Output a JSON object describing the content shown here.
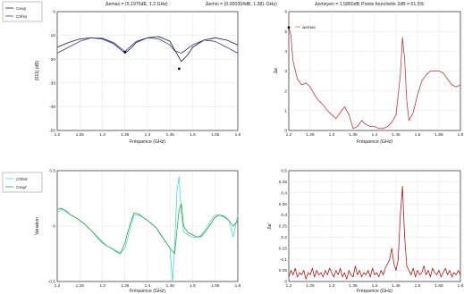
{
  "header": {
    "dmax": "Δemax = (5.1975dE, 1.2 GHz)",
    "dmin": "Δemin = (0.000304dB, 1.381 GHz)",
    "dmoyen": "Δemoyen = 1.5865dB",
    "fourchette": "Points fourchette 2dB = 61.5%"
  },
  "chart_data": [
    {
      "type": "line",
      "xlabel": "Fréquence (GHz)",
      "ylabel": "|S11| (dB)",
      "xlim": [
        1.2,
        1.6
      ],
      "ylim": [
        -50,
        0
      ],
      "xticks": [
        "1.2",
        "1.25",
        "1.3",
        "1.35",
        "1.4",
        "1.45",
        "1.5",
        "1.55",
        "1.6"
      ],
      "yticks": [
        "0",
        "-10",
        "-20",
        "-30",
        "-40",
        "-50"
      ],
      "grid": true,
      "legend": "top-left",
      "legend_entries": [
        "Cexp",
        "Chfss"
      ],
      "series": [
        {
          "name": "Cexp",
          "color": "#1a1a3a",
          "x": [
            1.2,
            1.225,
            1.25,
            1.275,
            1.3,
            1.325,
            1.35,
            1.36,
            1.375,
            1.4,
            1.425,
            1.45,
            1.46,
            1.475,
            1.49,
            1.5,
            1.525,
            1.55,
            1.575,
            1.6
          ],
          "y": [
            -15,
            -13,
            -11.5,
            -11,
            -11.5,
            -13.5,
            -17.5,
            -16,
            -13,
            -11,
            -10.5,
            -12.5,
            -16,
            -21,
            -18,
            -15,
            -12,
            -11,
            -12,
            -14
          ]
        },
        {
          "name": "Chfss",
          "color": "#3a3a8a",
          "x": [
            1.2,
            1.225,
            1.25,
            1.275,
            1.3,
            1.325,
            1.35,
            1.36,
            1.375,
            1.4,
            1.425,
            1.45,
            1.46,
            1.475,
            1.5,
            1.525,
            1.55,
            1.575,
            1.6
          ],
          "y": [
            -17.5,
            -15,
            -12.5,
            -11,
            -11.2,
            -13,
            -16.8,
            -15,
            -12.5,
            -11,
            -11.5,
            -14,
            -16.5,
            -17.5,
            -14,
            -12,
            -12.5,
            -15,
            -17.5
          ]
        }
      ],
      "markers": [
        {
          "x": 1.35,
          "y": -17
        },
        {
          "x": 1.47,
          "y": -24
        }
      ]
    },
    {
      "type": "line",
      "xlabel": "Fréquence (GHz)",
      "ylabel": "Δe",
      "xlim": [
        1.2,
        1.6
      ],
      "ylim": [
        0,
        6
      ],
      "xticks": [
        "1.2",
        "1.25",
        "1.3",
        "1.35",
        "1.4",
        "1.45",
        "1.5",
        "1.55",
        "1.6"
      ],
      "yticks": [
        "6",
        "5",
        "4",
        "3",
        "2",
        "1",
        "0"
      ],
      "grid": true,
      "legend": "top-left",
      "legend_entries": [
        "Δemax"
      ],
      "series": [
        {
          "name": "Δemax",
          "color": "#b04040",
          "x": [
            1.2,
            1.205,
            1.21,
            1.22,
            1.23,
            1.24,
            1.25,
            1.26,
            1.27,
            1.28,
            1.29,
            1.3,
            1.31,
            1.32,
            1.33,
            1.34,
            1.35,
            1.36,
            1.37,
            1.38,
            1.39,
            1.4,
            1.41,
            1.42,
            1.43,
            1.44,
            1.45,
            1.46,
            1.465,
            1.47,
            1.475,
            1.48,
            1.49,
            1.5,
            1.51,
            1.52,
            1.53,
            1.54,
            1.55,
            1.56,
            1.57,
            1.58,
            1.59,
            1.6
          ],
          "y": [
            5.2,
            4.8,
            3.5,
            2.6,
            2.3,
            2.4,
            2.2,
            1.8,
            1.5,
            1.3,
            1.0,
            0.8,
            0.6,
            0.9,
            1.2,
            0.8,
            0.1,
            0.2,
            0.5,
            0.3,
            0.2,
            0.2,
            0.1,
            0.1,
            0.2,
            0.4,
            0.8,
            2.8,
            4.7,
            3.6,
            1.5,
            0.5,
            0.9,
            1.8,
            2.5,
            2.8,
            3.0,
            3.0,
            3.0,
            2.9,
            2.6,
            2.3,
            2.2,
            2.3
          ]
        }
      ],
      "markers": [
        {
          "x": 1.2,
          "y": 5.2
        }
      ]
    },
    {
      "type": "line",
      "xlabel": "Fréquence (GHz)",
      "ylabel": "Variation",
      "xlim": [
        1.2,
        1.6
      ],
      "ylim": [
        -0.5,
        0.5
      ],
      "xticks": [
        "1.2",
        "1.25",
        "1.3",
        "1.35",
        "1.4",
        "1.45",
        "1.5",
        "1.55",
        "1.6"
      ],
      "yticks": [
        "0.5",
        "0",
        "-0.5"
      ],
      "grid": true,
      "legend": "top-left",
      "legend_entries": [
        "Chfss'",
        "Cexp'"
      ],
      "series": [
        {
          "name": "Chfss'",
          "color": "#5ad0d8",
          "x": [
            1.2,
            1.21,
            1.22,
            1.23,
            1.24,
            1.25,
            1.26,
            1.27,
            1.28,
            1.29,
            1.3,
            1.31,
            1.32,
            1.33,
            1.34,
            1.35,
            1.36,
            1.37,
            1.38,
            1.39,
            1.4,
            1.41,
            1.42,
            1.43,
            1.44,
            1.45,
            1.455,
            1.46,
            1.465,
            1.47,
            1.475,
            1.48,
            1.49,
            1.5,
            1.51,
            1.52,
            1.53,
            1.54,
            1.55,
            1.56,
            1.57,
            1.58,
            1.59,
            1.6
          ],
          "y": [
            0.12,
            0.15,
            0.14,
            0.1,
            0.08,
            0.05,
            0.02,
            -0.02,
            -0.06,
            -0.1,
            -0.14,
            -0.18,
            -0.2,
            -0.22,
            -0.24,
            -0.2,
            -0.05,
            0.1,
            0.1,
            0.08,
            0.05,
            0.02,
            -0.02,
            -0.08,
            -0.14,
            -0.2,
            -0.5,
            -0.2,
            0.3,
            0.45,
            0.1,
            -0.05,
            -0.08,
            -0.1,
            -0.1,
            -0.08,
            -0.02,
            0.05,
            0.1,
            0.1,
            0.08,
            0.05,
            -0.1,
            0.1
          ]
        },
        {
          "name": "Cexp'",
          "color": "#30a040",
          "x": [
            1.2,
            1.21,
            1.22,
            1.23,
            1.24,
            1.25,
            1.26,
            1.27,
            1.28,
            1.29,
            1.3,
            1.31,
            1.32,
            1.33,
            1.34,
            1.35,
            1.36,
            1.37,
            1.38,
            1.39,
            1.4,
            1.41,
            1.42,
            1.43,
            1.44,
            1.45,
            1.46,
            1.47,
            1.475,
            1.48,
            1.49,
            1.5,
            1.51,
            1.52,
            1.53,
            1.54,
            1.55,
            1.56,
            1.57,
            1.58,
            1.59,
            1.6
          ],
          "y": [
            0.15,
            0.16,
            0.13,
            0.1,
            0.08,
            0.05,
            0.02,
            -0.02,
            -0.06,
            -0.11,
            -0.15,
            -0.18,
            -0.2,
            -0.23,
            -0.25,
            -0.15,
            0.0,
            0.12,
            0.11,
            0.08,
            0.05,
            0.02,
            -0.02,
            -0.08,
            -0.14,
            -0.2,
            -0.25,
            0.15,
            0.2,
            0.0,
            -0.06,
            -0.08,
            -0.1,
            -0.09,
            -0.04,
            0.02,
            0.08,
            0.1,
            0.09,
            0.05,
            0.0,
            0.05
          ]
        }
      ]
    },
    {
      "type": "line",
      "xlabel": "Fréquence (GHz)",
      "ylabel": "Δe'",
      "xlim": [
        1.2,
        1.6
      ],
      "ylim": [
        0,
        0.5
      ],
      "xticks": [
        "1.2",
        "1.25",
        "1.3",
        "1.35",
        "1.4",
        "1.45",
        "1.5",
        "1.55",
        "1.6"
      ],
      "yticks": [
        "0.5",
        "0.45",
        "0.4",
        "0.35",
        "0.3",
        "0.25",
        "0.2",
        "0.15",
        "0.1",
        "0.05",
        "0"
      ],
      "grid": true,
      "series": [
        {
          "name": "",
          "color": "#a02020",
          "x": [
            1.2,
            1.205,
            1.21,
            1.215,
            1.22,
            1.225,
            1.23,
            1.235,
            1.24,
            1.245,
            1.25,
            1.255,
            1.26,
            1.265,
            1.27,
            1.275,
            1.28,
            1.285,
            1.29,
            1.295,
            1.3,
            1.305,
            1.31,
            1.315,
            1.32,
            1.325,
            1.33,
            1.335,
            1.34,
            1.345,
            1.35,
            1.355,
            1.36,
            1.365,
            1.37,
            1.375,
            1.38,
            1.385,
            1.39,
            1.395,
            1.4,
            1.405,
            1.41,
            1.415,
            1.42,
            1.425,
            1.43,
            1.435,
            1.44,
            1.445,
            1.45,
            1.455,
            1.46,
            1.465,
            1.47,
            1.475,
            1.48,
            1.485,
            1.49,
            1.495,
            1.5,
            1.505,
            1.51,
            1.515,
            1.52,
            1.525,
            1.53,
            1.535,
            1.54,
            1.545,
            1.55,
            1.555,
            1.56,
            1.565,
            1.57,
            1.575,
            1.58,
            1.585,
            1.59,
            1.595,
            1.6
          ],
          "y": [
            0.02,
            0.05,
            0.03,
            0.06,
            0.02,
            0.04,
            0.03,
            0.05,
            0.01,
            0.04,
            0.03,
            0.06,
            0.02,
            0.05,
            0.03,
            0.04,
            0.02,
            0.05,
            0.03,
            0.06,
            0.04,
            0.02,
            0.05,
            0.03,
            0.06,
            0.02,
            0.04,
            0.01,
            0.05,
            0.03,
            0.02,
            0.07,
            0.03,
            0.05,
            0.02,
            0.04,
            0.03,
            0.05,
            0.02,
            0.06,
            0.03,
            0.04,
            0.02,
            0.05,
            0.03,
            0.06,
            0.08,
            0.1,
            0.15,
            0.08,
            0.05,
            0.1,
            0.3,
            0.43,
            0.2,
            0.07,
            0.05,
            0.03,
            0.06,
            0.02,
            0.05,
            0.03,
            0.04,
            0.07,
            0.03,
            0.05,
            0.02,
            0.06,
            0.04,
            0.03,
            0.05,
            0.02,
            0.04,
            0.06,
            0.03,
            0.05,
            0.02,
            0.04,
            0.03,
            0.05,
            0.03
          ]
        }
      ]
    }
  ]
}
